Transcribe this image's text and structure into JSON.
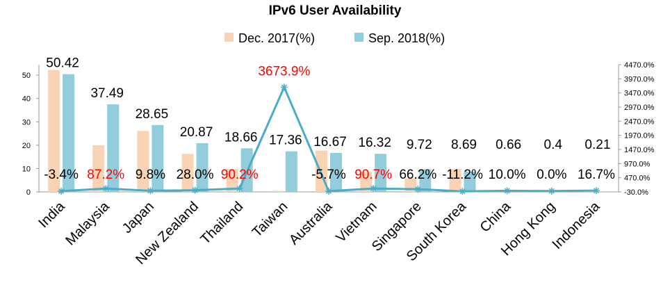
{
  "chart_data": {
    "type": "bar+line",
    "title": "IPv6 User Availability",
    "categories": [
      "India",
      "Malaysia",
      "Japan",
      "New Zealand",
      "Thailand",
      "Taiwan",
      "Australia",
      "Vietnam",
      "Singapore",
      "South Korea",
      "China",
      "Hong Kong",
      "Indonesia"
    ],
    "series": [
      {
        "name": "Dec. 2017(%)",
        "type": "bar",
        "axis": "left",
        "color": "#FAD3B4",
        "values": [
          52.2,
          20.0,
          26.1,
          16.3,
          9.8,
          0.46,
          17.7,
          8.6,
          5.8,
          9.8,
          0.6,
          0.4,
          0.18
        ]
      },
      {
        "name": "Sep. 2018(%)",
        "type": "bar",
        "axis": "left",
        "color": "#92CDDC",
        "values": [
          50.42,
          37.49,
          28.65,
          20.87,
          18.66,
          17.36,
          16.67,
          16.32,
          9.72,
          8.69,
          0.66,
          0.4,
          0.21
        ],
        "labels": [
          "50.42",
          "37.49",
          "28.65",
          "20.87",
          "18.66",
          "17.36",
          "16.67",
          "16.32",
          "9.72",
          "8.69",
          "0.66",
          "0.4",
          "0.21"
        ]
      },
      {
        "type": "line",
        "axis": "right",
        "color": "#4BACC6",
        "marker": "star",
        "values": [
          -3.4,
          87.2,
          9.8,
          28.0,
          90.2,
          3673.9,
          -5.7,
          90.7,
          66.2,
          -11.2,
          10.0,
          0.0,
          16.7
        ],
        "labels": [
          "-3.4%",
          "87.2%",
          "9.8%",
          "28.0%",
          "90.2%",
          "3673.9%",
          "-5.7%",
          "90.7%",
          "66.2%",
          "-11.2%",
          "10.0%",
          "0.0%",
          "16.7%"
        ],
        "label_colors": [
          "#000000",
          "#FF0000",
          "#000000",
          "#000000",
          "#FF0000",
          "#FF0000",
          "#000000",
          "#FF0000",
          "#000000",
          "#000000",
          "#000000",
          "#000000",
          "#000000"
        ]
      }
    ],
    "y_left": {
      "ylim": [
        0,
        54.5
      ],
      "ticks": [
        "0",
        "10",
        "20",
        "30",
        "40",
        "50"
      ]
    },
    "y_right": {
      "ylim": [
        -30,
        4470
      ],
      "ticks": [
        "-30.0%",
        "470.0%",
        "970.0%",
        "1470.0%",
        "1970.0%",
        "2470.0%",
        "2970.0%",
        "3470.0%",
        "3970.0%",
        "4470.0%"
      ]
    },
    "legend_position": "top",
    "grid": false
  }
}
